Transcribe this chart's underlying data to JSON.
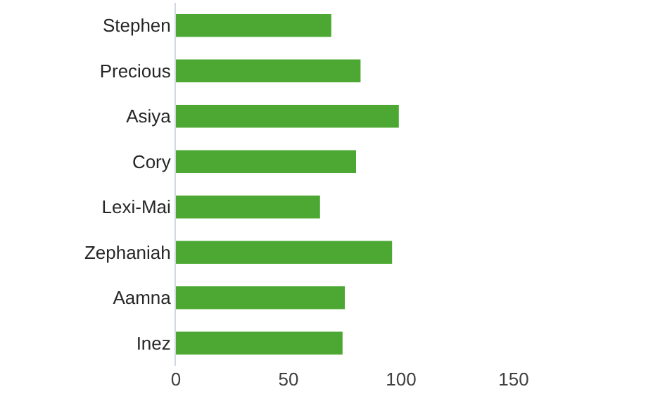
{
  "chart_data": {
    "type": "bar",
    "orientation": "horizontal",
    "categories": [
      "Stephen",
      "Precious",
      "Asiya",
      "Cory",
      "Lexi-Mai",
      "Zephaniah",
      "Aamna",
      "Inez"
    ],
    "values": [
      69,
      82,
      99,
      80,
      64,
      96,
      75,
      74
    ],
    "color": "#4ca832",
    "xlim": [
      0,
      150
    ],
    "xticks": [
      0,
      50,
      100,
      150
    ],
    "grid": false
  }
}
